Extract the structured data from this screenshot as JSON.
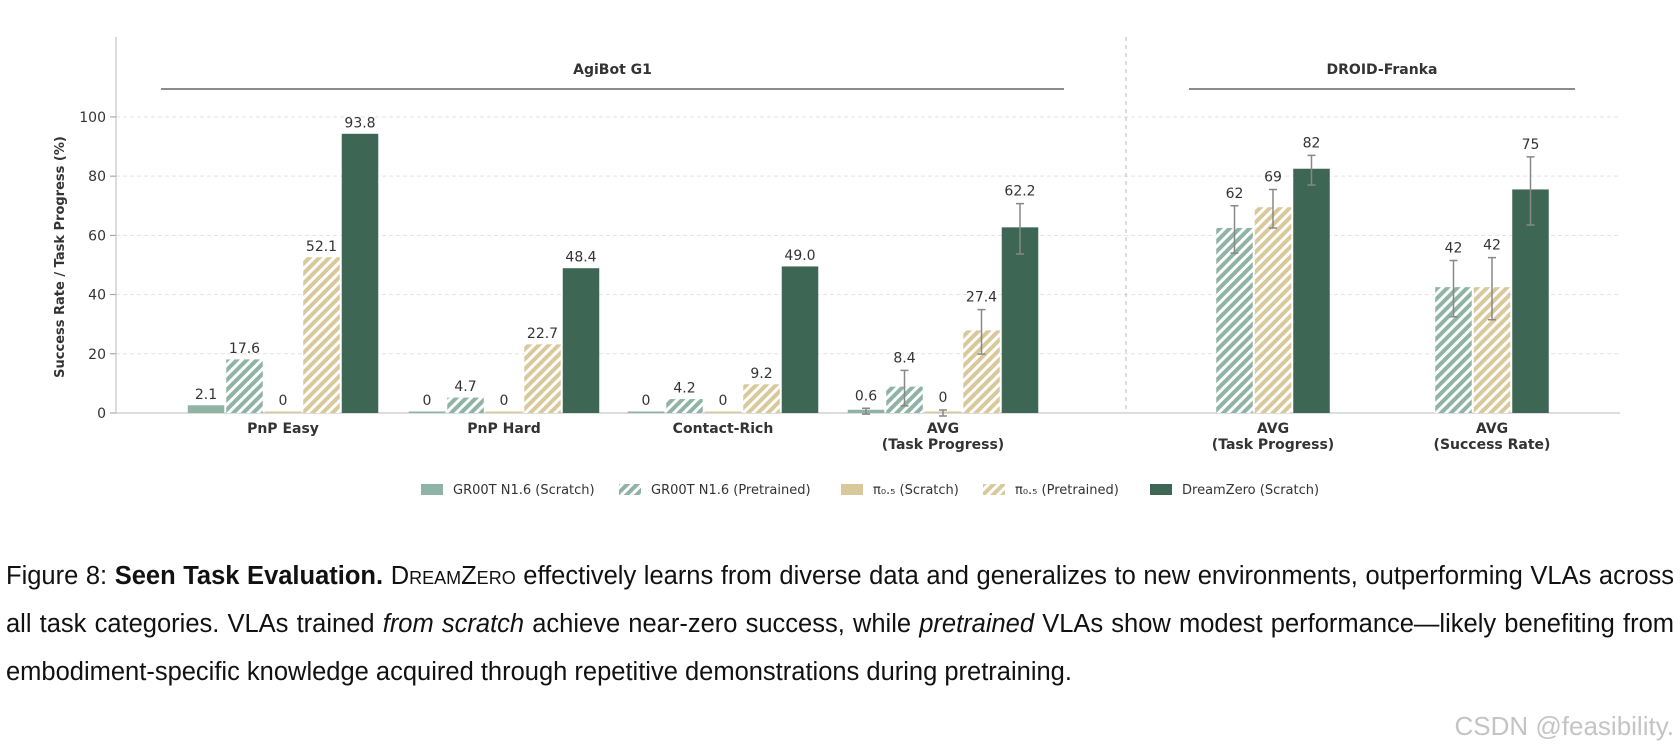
{
  "chart_data": {
    "type": "bar",
    "groups": [
      "AgiBot G1",
      "DROID-Franka"
    ],
    "categories": [
      "PnP Easy",
      "PnP Hard",
      "Contact-Rich",
      "AVG\n(Task Progress)",
      "AVG\n(Task Progress)",
      "AVG\n(Success Rate)"
    ],
    "ylabel": "Success Rate / Task Progress (%)",
    "ylim": [
      0,
      127
    ],
    "yticks": [
      0,
      20,
      40,
      60,
      80,
      100
    ],
    "grid": true,
    "series": [
      {
        "name": "GR00T N1.6 (Scratch)",
        "color": "#8fb3a5",
        "hatch": false,
        "values": [
          2.1,
          0,
          0,
          0.6,
          null,
          null
        ],
        "errors": [
          null,
          null,
          null,
          1.0,
          null,
          null
        ]
      },
      {
        "name": "GR00T N1.6 (Pretrained)",
        "color": "#8fb3a5",
        "hatch": true,
        "values": [
          17.6,
          4.7,
          4.2,
          8.4,
          62,
          42
        ],
        "errors": [
          null,
          null,
          null,
          6,
          8,
          9.5
        ]
      },
      {
        "name": "π₀.₅ (Scratch)",
        "color": "#d9c99a",
        "hatch": false,
        "values": [
          0,
          0,
          0,
          0,
          null,
          null
        ],
        "errors": [
          null,
          null,
          null,
          1.0,
          null,
          null
        ]
      },
      {
        "name": "π₀.₅ (Pretrained)",
        "color": "#d9c99a",
        "hatch": true,
        "values": [
          52.1,
          22.7,
          9.2,
          27.4,
          69,
          42
        ],
        "errors": [
          null,
          null,
          null,
          7.5,
          6.5,
          10.5
        ]
      },
      {
        "name": "DreamZero (Scratch)",
        "color": "#3d6655",
        "hatch": false,
        "values": [
          93.8,
          48.4,
          49.0,
          62.2,
          82,
          75
        ],
        "value_labels": [
          "93.8",
          "48.4",
          "49.0",
          "62.2",
          "82",
          "75"
        ],
        "errors": [
          null,
          null,
          null,
          8.5,
          5,
          11.5
        ]
      }
    ]
  },
  "caption": [
    {
      "text": "Figure 8: ",
      "style": ""
    },
    {
      "text": "Seen Task Evaluation.",
      "style": "b"
    },
    {
      "text": " ",
      "style": ""
    },
    {
      "text": "DreamZero",
      "style": "sc"
    },
    {
      "text": " effectively learns from diverse data and generalizes to new environments, outperforming VLAs across all task categories. VLAs trained ",
      "style": ""
    },
    {
      "text": "from scratch",
      "style": "i"
    },
    {
      "text": " achieve near-zero success, while ",
      "style": ""
    },
    {
      "text": "pretrained",
      "style": "i"
    },
    {
      "text": " VLAs show modest performance—likely benefiting from embodiment-specific knowledge acquired through repetitive demonstrations during pretraining.",
      "style": ""
    }
  ],
  "watermark": "CSDN @feasibility."
}
